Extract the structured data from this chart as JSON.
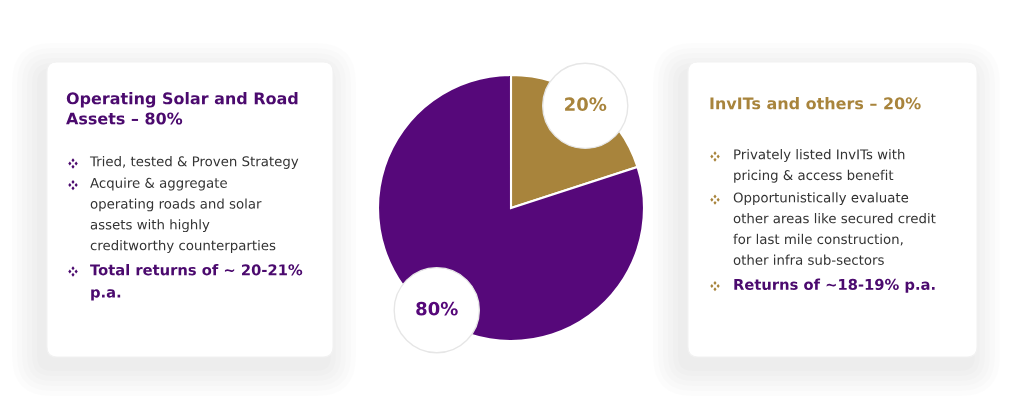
{
  "chart_data": [
    {
      "type": "other",
      "title": "Operating Solar and Road\nAssets – 80%",
      "color": "#4b0a6e",
      "colors": [
        "#333333",
        "#333333",
        "#4b0a6e"
      ],
      "annotations": [
        "Tried, tested & Proven Strategy",
        "Acquire & aggregate\noperating roads and solar\nassets with highly\ncreditworthy counterparties",
        "Total returns of ~ 20-21%\np.a."
      ]
    },
    {
      "type": "pie",
      "categories": [
        null,
        null
      ],
      "values": [
        20,
        80
      ],
      "colors": [
        "#a8843c",
        "#56087a"
      ],
      "value_labels": [
        "20%",
        "80%"
      ]
    },
    {
      "type": "other",
      "title": "InvITs and others – 20%",
      "color": "#a8843c",
      "colors": [
        "#333333",
        "#333333",
        "#4b0a6e"
      ],
      "annotations": [
        "Privately listed InvITs with\npricing & access benefit",
        "Opportunistically evaluate\nother areas like secured credit\nfor last mile construction,\nother infra sub-sectors",
        "Returns of ~18-19% p.a."
      ]
    }
  ]
}
